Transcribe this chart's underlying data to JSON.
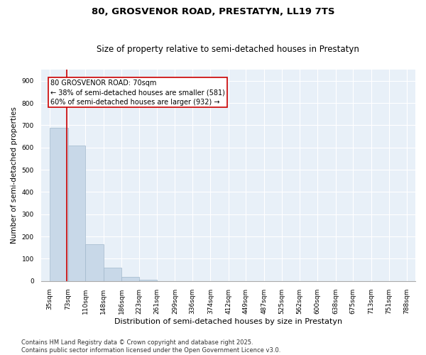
{
  "title": "80, GROSVENOR ROAD, PRESTATYN, LL19 7TS",
  "subtitle": "Size of property relative to semi-detached houses in Prestatyn",
  "xlabel": "Distribution of semi-detached houses by size in Prestatyn",
  "ylabel": "Number of semi-detached properties",
  "bar_color": "#c8d8e8",
  "bar_edge_color": "#a0b8cc",
  "property_line_color": "#cc0000",
  "property_size": 70,
  "annotation_text": "80 GROSVENOR ROAD: 70sqm\n← 38% of semi-detached houses are smaller (581)\n60% of semi-detached houses are larger (932) →",
  "annotation_box_color": "#cc0000",
  "annotation_bg_color": "#ffffff",
  "bins": [
    35,
    73,
    110,
    148,
    186,
    223,
    261,
    299,
    336,
    374,
    412,
    449,
    487,
    525,
    562,
    600,
    638,
    675,
    713,
    751,
    788
  ],
  "bar_values": [
    690,
    610,
    165,
    60,
    20,
    5,
    0,
    0,
    0,
    0,
    0,
    0,
    0,
    0,
    0,
    0,
    0,
    0,
    0,
    0
  ],
  "ylim": [
    0,
    950
  ],
  "yticks": [
    0,
    100,
    200,
    300,
    400,
    500,
    600,
    700,
    800,
    900
  ],
  "bg_color": "#e8f0f8",
  "grid_color": "#ffffff",
  "footer_text": "Contains HM Land Registry data © Crown copyright and database right 2025.\nContains public sector information licensed under the Open Government Licence v3.0.",
  "title_fontsize": 9.5,
  "subtitle_fontsize": 8.5,
  "xlabel_fontsize": 8,
  "ylabel_fontsize": 7.5,
  "tick_fontsize": 6.5,
  "annotation_fontsize": 7,
  "footer_fontsize": 6
}
